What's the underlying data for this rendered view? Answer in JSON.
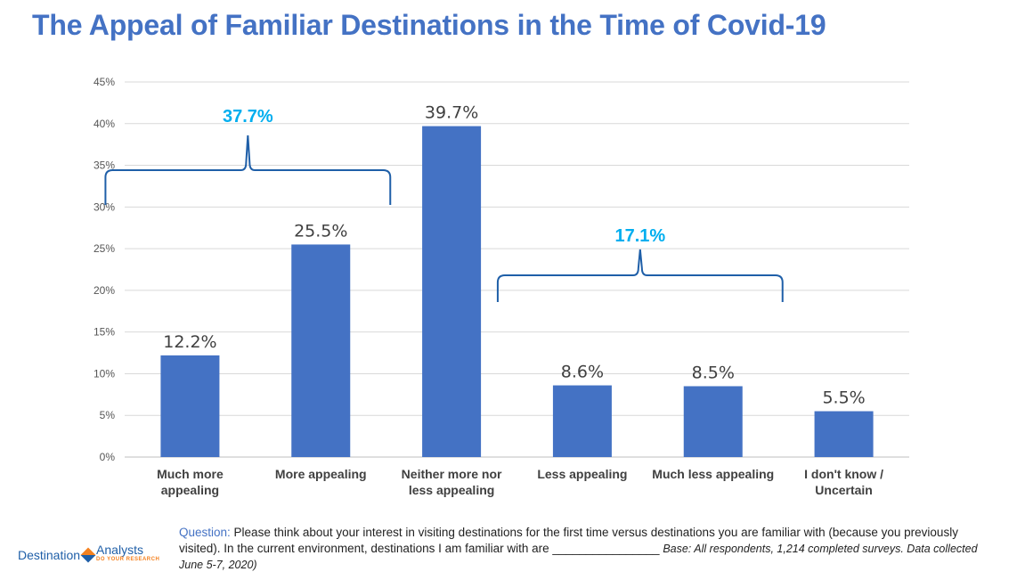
{
  "title": "The Appeal of Familiar Destinations in the Time of Covid-19",
  "chart_data": {
    "type": "bar",
    "title": "The Appeal of Familiar Destinations in the Time of Covid-19",
    "categories": [
      [
        "Much more",
        "appealing"
      ],
      [
        "More appealing"
      ],
      [
        "Neither more nor",
        "less appealing"
      ],
      [
        "Less appealing"
      ],
      [
        "Much less appealing"
      ],
      [
        "I don't know /",
        "Uncertain"
      ]
    ],
    "values": [
      12.2,
      25.5,
      39.7,
      8.6,
      8.5,
      5.5
    ],
    "value_labels": [
      "12.2%",
      "25.5%",
      "39.7%",
      "8.6%",
      "8.5%",
      "5.5%"
    ],
    "yticks": [
      0,
      5,
      10,
      15,
      20,
      25,
      30,
      35,
      40,
      45
    ],
    "ytick_labels": [
      "0%",
      "5%",
      "10%",
      "15%",
      "20%",
      "25%",
      "30%",
      "35%",
      "40%",
      "45%"
    ],
    "ylim": [
      0,
      45
    ],
    "xlabel": "",
    "ylabel": "",
    "grid": true,
    "bar_color": "#4472c4",
    "annotations": [
      {
        "label": "37.7%",
        "from_index": 0,
        "to_index": 1,
        "color": "#00aeef"
      },
      {
        "label": "17.1%",
        "from_index": 3,
        "to_index": 4,
        "color": "#00aeef"
      }
    ]
  },
  "footnote": {
    "question_label": "Question:",
    "question_text": " Please think about your interest in visiting destinations for the first time versus destinations you are familiar with (because you previously visited). In the current environment, destinations  I am familiar with are ________________ ",
    "base_text": "Base: All respondents, 1,214 completed surveys. Data collected June 5-7, 2020)"
  },
  "logo": {
    "left_word": "Destination",
    "right_word": "Analysts",
    "tagline": "DO YOUR RESEARCH"
  }
}
